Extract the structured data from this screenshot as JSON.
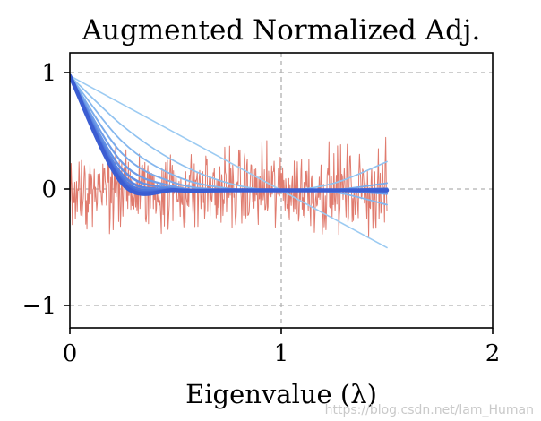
{
  "chart_data": {
    "type": "line",
    "title": "Augmented Normalized Adj.",
    "xlabel": "Eigenvalue (λ)",
    "ylabel": "",
    "xlim": [
      0,
      2
    ],
    "ylim": [
      -1.2,
      1.2
    ],
    "xticks": [
      0,
      1,
      2
    ],
    "xtick_labels": [
      "0",
      "1",
      "2"
    ],
    "yticks": [
      -1,
      0,
      1
    ],
    "ytick_labels": [
      "−1",
      "0",
      "1"
    ],
    "grid": true,
    "lambda_range": [
      0,
      1.5
    ],
    "series": [
      {
        "color": "#9ccbf2",
        "width": 1.6,
        "x": [
          0,
          0.25,
          0.5,
          0.75,
          1.0,
          1.25,
          1.5
        ],
        "y": [
          1,
          0.75,
          0.5,
          0.25,
          0,
          -0.25,
          -0.5
        ]
      },
      {
        "color": "#90c2f0",
        "width": 1.7,
        "x": [
          0,
          0.25,
          0.5,
          0.75,
          1.0,
          1.25,
          1.5
        ],
        "y": [
          1,
          0.563,
          0.25,
          0.063,
          0,
          0.063,
          0.25
        ]
      },
      {
        "color": "#85b7ee",
        "width": 1.8,
        "x": [
          0,
          0.25,
          0.5,
          0.75,
          1.0,
          1.25,
          1.5
        ],
        "y": [
          1,
          0.422,
          0.125,
          0.016,
          0,
          -0.016,
          -0.125
        ]
      },
      {
        "color": "#7aabeb",
        "width": 2.0,
        "x": [
          0,
          0.25,
          0.5,
          0.75,
          1.0,
          1.25,
          1.5
        ],
        "y": [
          1,
          0.316,
          0.063,
          0.004,
          0,
          0.004,
          0.063
        ]
      },
      {
        "color": "#6f9de8",
        "width": 2.2,
        "x": [
          0,
          0.25,
          0.5,
          0.75,
          1.0,
          1.25,
          1.5
        ],
        "y": [
          1,
          0.237,
          0.031,
          0.001,
          0,
          -0.001,
          -0.031
        ]
      },
      {
        "color": "#6390e4",
        "width": 2.5,
        "x": [
          0,
          0.25,
          0.5,
          0.75,
          1.0,
          1.25,
          1.5
        ],
        "y": [
          1,
          0.178,
          0.016,
          0.0,
          0,
          0.0,
          0.016
        ]
      },
      {
        "color": "#5883e0",
        "width": 2.9,
        "x": [
          0,
          0.25,
          0.5,
          0.75,
          1.0,
          1.25,
          1.5
        ],
        "y": [
          1,
          0.133,
          0.008,
          0.0,
          0,
          0.0,
          -0.008
        ]
      },
      {
        "color": "#4e76dc",
        "width": 3.3,
        "x": [
          0,
          0.25,
          0.5,
          0.75,
          1.0,
          1.25,
          1.5
        ],
        "y": [
          1,
          0.1,
          0.004,
          0.0,
          0,
          0.0,
          0.004
        ]
      },
      {
        "color": "#4469d7",
        "width": 3.8,
        "x": [
          0,
          0.25,
          0.5,
          0.75,
          1.0,
          1.25,
          1.5
        ],
        "y": [
          1,
          0.075,
          0.002,
          0.0,
          0,
          0.0,
          -0.002
        ]
      },
      {
        "color": "#3b5dd2",
        "width": 4.4,
        "x": [
          0,
          0.25,
          0.5,
          0.75,
          1.0,
          1.25,
          1.5
        ],
        "y": [
          1,
          0.056,
          0.001,
          0.0,
          0,
          0.0,
          0.001
        ]
      }
    ],
    "noise": {
      "color": "#e07b6e",
      "x_range": [
        0,
        1.5
      ],
      "amplitude_range": [
        -0.7,
        0.75
      ],
      "typical_amplitude": 0.35
    }
  },
  "watermark": "https://blog.csdn.net/lam_Human"
}
